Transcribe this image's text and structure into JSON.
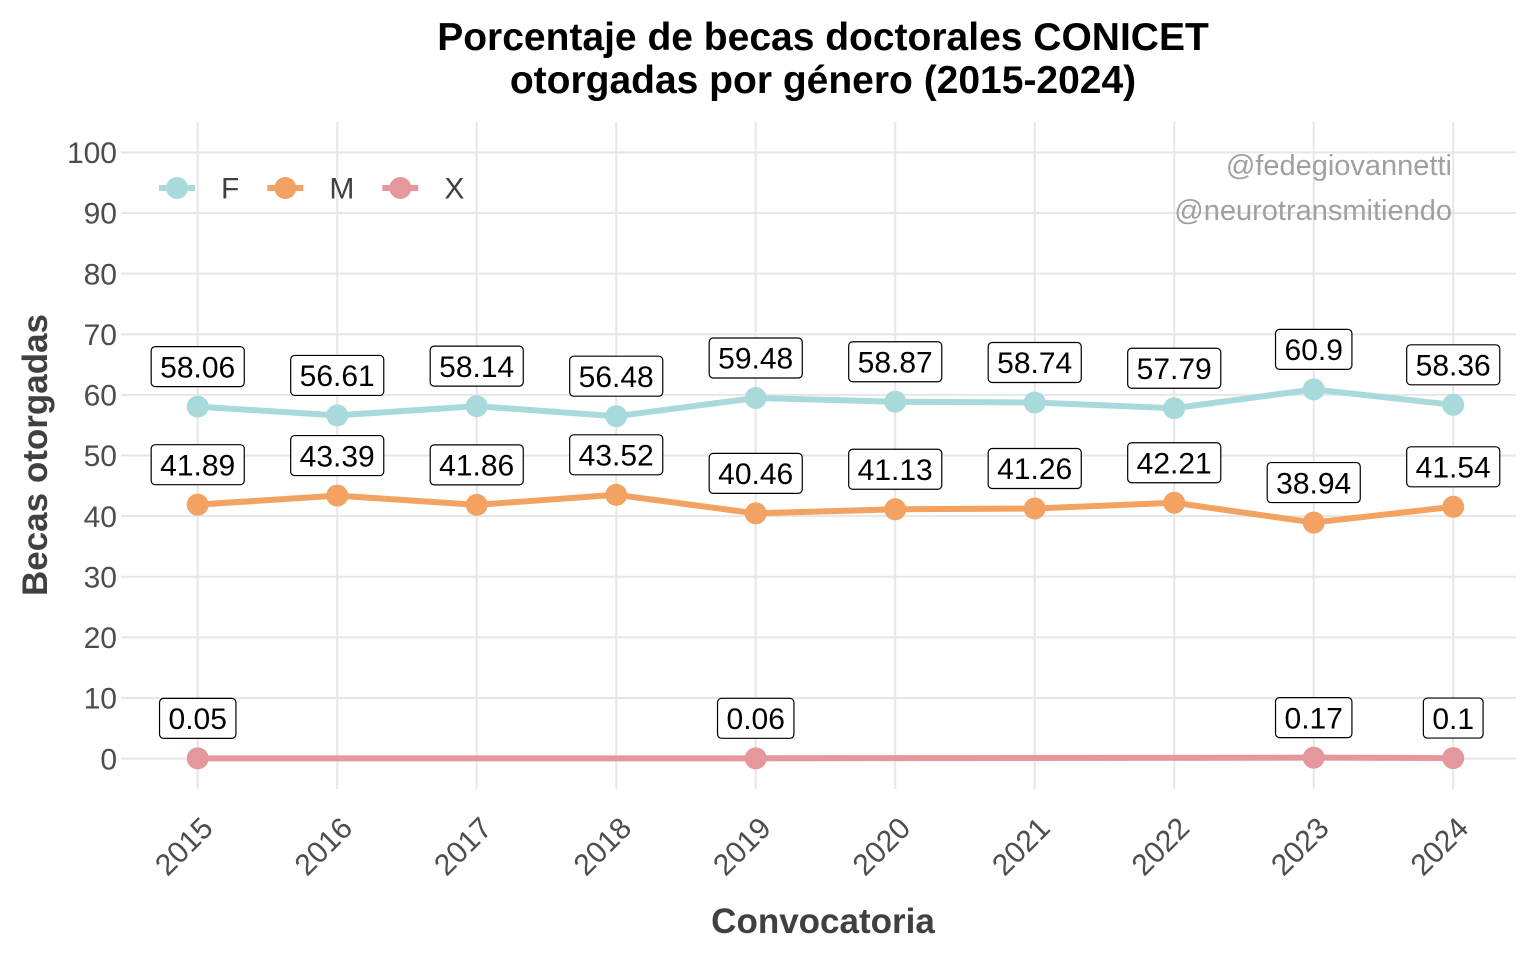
{
  "chart_data": {
    "type": "line",
    "title": [
      "Porcentaje de becas doctorales CONICET",
      "otorgadas por género (2015-2024)"
    ],
    "xlabel": "Convocatoria",
    "ylabel": "Becas otorgadas",
    "x": [
      2015,
      2016,
      2017,
      2018,
      2019,
      2020,
      2021,
      2022,
      2023,
      2024
    ],
    "xlim": [
      2014.45,
      2024.45
    ],
    "ylim": [
      -5,
      105
    ],
    "yticks": [
      0,
      10,
      20,
      30,
      40,
      50,
      60,
      70,
      80,
      90,
      100
    ],
    "grid": true,
    "legend": "top-left",
    "data_labels": true,
    "series": [
      {
        "name": "F",
        "color": "#A8DADC",
        "values": [
          58.06,
          56.61,
          58.14,
          56.48,
          59.48,
          58.87,
          58.74,
          57.79,
          60.9,
          58.36
        ]
      },
      {
        "name": "M",
        "color": "#F4A261",
        "values": [
          41.89,
          43.39,
          41.86,
          43.52,
          40.46,
          41.13,
          41.26,
          42.21,
          38.94,
          41.54
        ]
      },
      {
        "name": "X",
        "color": "#E5989B",
        "x": [
          2015,
          2019,
          2023,
          2024
        ],
        "values": [
          0.05,
          0.06,
          0.17,
          0.1
        ]
      }
    ],
    "annotations": [
      "@fedegiovannetti",
      "@neurotransmitiendo"
    ]
  }
}
